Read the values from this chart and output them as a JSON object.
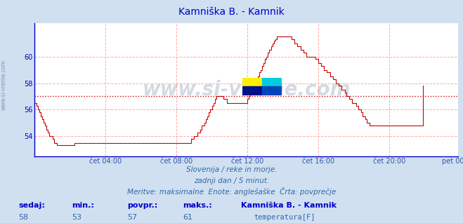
{
  "title": "Kamniška B. - Kamnik",
  "title_color": "#0000cc",
  "bg_color": "#d0e0f0",
  "plot_bg_color": "#ffffff",
  "grid_color": "#ffaaaa",
  "grid_style": "--",
  "axis_color": "#0000cc",
  "line_color": "#cc0000",
  "avg_line_color": "#cc0000",
  "avg_line_style": ":",
  "avg_value": 57,
  "ylim": [
    52.5,
    62.5
  ],
  "yticks": [
    54,
    56,
    58,
    60
  ],
  "xlabel_color": "#3355aa",
  "xtick_labels": [
    "čet 04:00",
    "čet 08:00",
    "čet 12:00",
    "čet 16:00",
    "čet 20:00",
    "pet 00:00"
  ],
  "xtick_positions": [
    48,
    96,
    144,
    192,
    240,
    287
  ],
  "n_points": 288,
  "watermark": "www.si-vreme.com",
  "watermark_color": "#1a3a6a",
  "watermark_alpha": 0.18,
  "sub_text1": "Slovenija / reke in morje.",
  "sub_text2": "zadnji dan / 5 minut.",
  "sub_text3": "Meritve: maksimalne  Enote: anglešaške  Črta: povprečje",
  "sub_color": "#3366aa",
  "footer_label_color": "#0000cc",
  "footer_value_color": "#3366aa",
  "footer_labels": [
    "sedaj:",
    "min.:",
    "povpr.:",
    "maks.:"
  ],
  "footer_values": [
    "58",
    "53",
    "57",
    "61"
  ],
  "footer_series_label": "Kamniška B. - Kamnik",
  "footer_series_sub": "temperatura[F]",
  "legend_color": "#cc0000",
  "temperature_data": [
    56.5,
    56.3,
    56.0,
    55.8,
    55.5,
    55.3,
    55.0,
    54.8,
    54.5,
    54.3,
    54.0,
    54.0,
    53.8,
    53.5,
    53.5,
    53.3,
    53.3,
    53.3,
    53.3,
    53.3,
    53.3,
    53.3,
    53.3,
    53.3,
    53.3,
    53.3,
    53.3,
    53.5,
    53.5,
    53.5,
    53.5,
    53.5,
    53.5,
    53.5,
    53.5,
    53.5,
    53.5,
    53.5,
    53.5,
    53.5,
    53.5,
    53.5,
    53.5,
    53.5,
    53.5,
    53.5,
    53.5,
    53.5,
    53.5,
    53.5,
    53.5,
    53.5,
    53.5,
    53.5,
    53.5,
    53.5,
    53.5,
    53.5,
    53.5,
    53.5,
    53.5,
    53.5,
    53.5,
    53.5,
    53.5,
    53.5,
    53.5,
    53.5,
    53.5,
    53.5,
    53.5,
    53.5,
    53.5,
    53.5,
    53.5,
    53.5,
    53.5,
    53.5,
    53.5,
    53.5,
    53.5,
    53.5,
    53.5,
    53.5,
    53.5,
    53.5,
    53.5,
    53.5,
    53.5,
    53.5,
    53.5,
    53.5,
    53.5,
    53.5,
    53.5,
    53.5,
    53.5,
    53.5,
    53.5,
    53.5,
    53.5,
    53.5,
    53.5,
    53.5,
    53.5,
    53.5,
    53.8,
    53.8,
    54.0,
    54.0,
    54.3,
    54.3,
    54.5,
    54.8,
    54.8,
    55.0,
    55.3,
    55.5,
    55.8,
    56.0,
    56.3,
    56.5,
    56.8,
    57.0,
    57.0,
    57.0,
    57.0,
    57.0,
    56.8,
    56.8,
    56.5,
    56.5,
    56.5,
    56.5,
    56.5,
    56.5,
    56.5,
    56.5,
    56.5,
    56.5,
    56.5,
    56.5,
    56.5,
    56.5,
    56.8,
    57.0,
    57.3,
    57.5,
    57.8,
    58.0,
    58.3,
    58.5,
    58.8,
    59.0,
    59.3,
    59.5,
    59.8,
    60.0,
    60.3,
    60.5,
    60.8,
    61.0,
    61.2,
    61.3,
    61.5,
    61.5,
    61.5,
    61.5,
    61.5,
    61.5,
    61.5,
    61.5,
    61.5,
    61.5,
    61.3,
    61.3,
    61.0,
    61.0,
    60.8,
    60.8,
    60.5,
    60.5,
    60.3,
    60.3,
    60.0,
    60.0,
    60.0,
    60.0,
    60.0,
    60.0,
    59.8,
    59.8,
    59.5,
    59.5,
    59.3,
    59.3,
    59.0,
    59.0,
    58.8,
    58.8,
    58.5,
    58.5,
    58.3,
    58.3,
    58.0,
    58.0,
    57.8,
    57.8,
    57.5,
    57.5,
    57.3,
    57.0,
    57.0,
    56.8,
    56.8,
    56.5,
    56.5,
    56.5,
    56.3,
    56.0,
    56.0,
    55.8,
    55.5,
    55.5,
    55.3,
    55.0,
    55.0,
    54.8,
    54.8,
    54.8,
    54.8,
    54.8,
    54.8,
    54.8,
    54.8,
    54.8,
    54.8,
    54.8,
    54.8,
    54.8,
    54.8,
    54.8,
    54.8,
    54.8,
    54.8,
    54.8,
    54.8,
    54.8,
    54.8,
    54.8,
    54.8,
    54.8,
    54.8,
    54.8,
    54.8,
    54.8,
    54.8,
    54.8,
    54.8,
    54.8,
    54.8,
    54.8,
    54.8,
    57.8
  ]
}
